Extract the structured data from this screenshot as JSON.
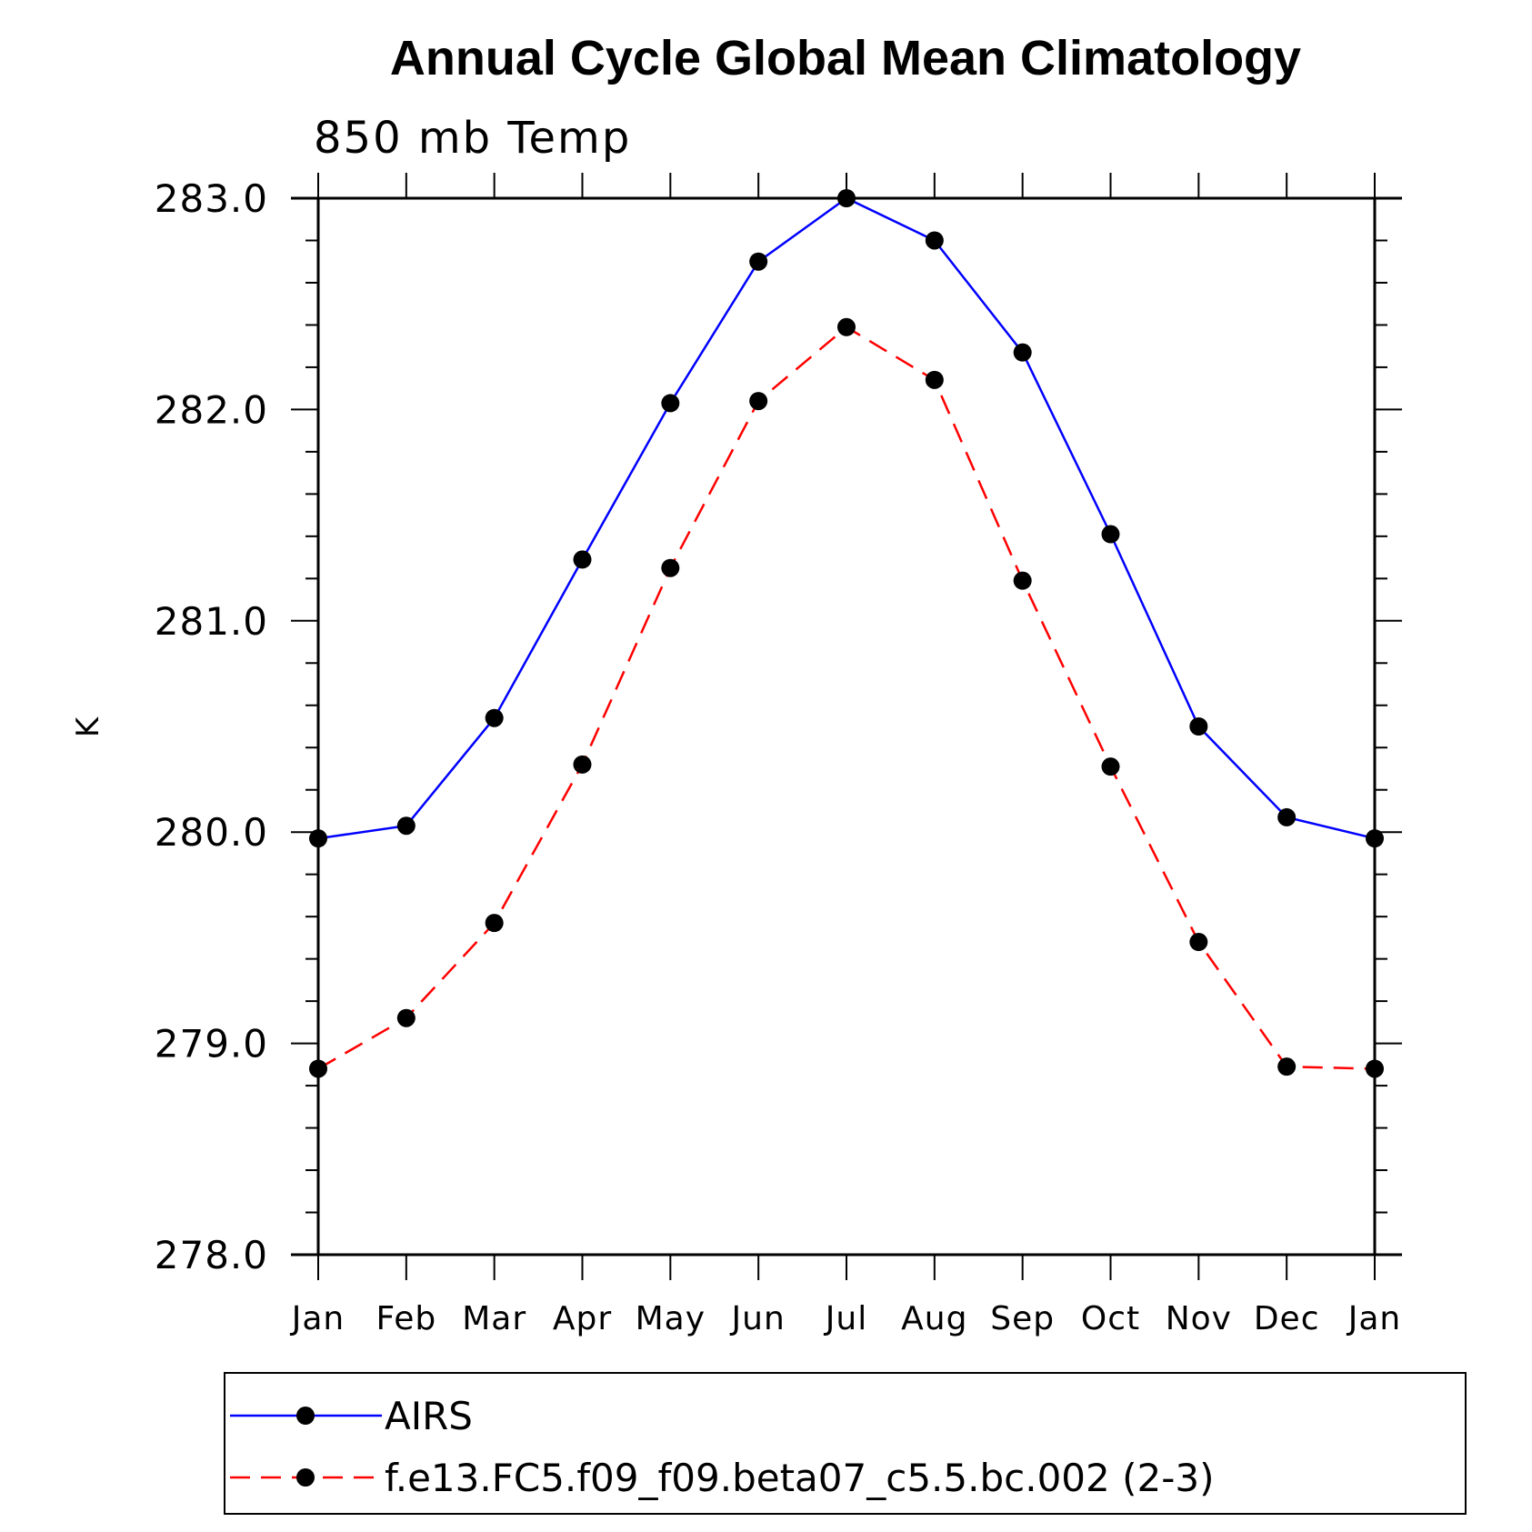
{
  "chart_data": {
    "type": "line",
    "title": "Annual Cycle Global Mean Climatology",
    "subtitle": "850 mb Temp",
    "xlabel": "",
    "ylabel": "K",
    "ylim": [
      278.0,
      283.0
    ],
    "yticks": [
      "278.0",
      "279.0",
      "280.0",
      "281.0",
      "282.0",
      "283.0"
    ],
    "categories": [
      "Jan",
      "Feb",
      "Mar",
      "Apr",
      "May",
      "Jun",
      "Jul",
      "Aug",
      "Sep",
      "Oct",
      "Nov",
      "Dec",
      "Jan"
    ],
    "series": [
      {
        "name": "AIRS",
        "color": "#0000ff",
        "dash": "solid",
        "values": [
          279.97,
          280.03,
          280.54,
          281.29,
          282.03,
          282.7,
          283.0,
          282.8,
          282.27,
          281.41,
          280.5,
          280.07,
          279.97
        ]
      },
      {
        "name": "f.e13.FC5.f09_f09.beta07_c5.5.bc.002 (2-3)",
        "color": "#ff0000",
        "dash": "dashed",
        "values": [
          278.88,
          279.12,
          279.57,
          280.32,
          281.25,
          282.04,
          282.39,
          282.14,
          281.19,
          280.31,
          279.48,
          278.89,
          278.88
        ]
      }
    ],
    "legend_position": "bottom"
  }
}
